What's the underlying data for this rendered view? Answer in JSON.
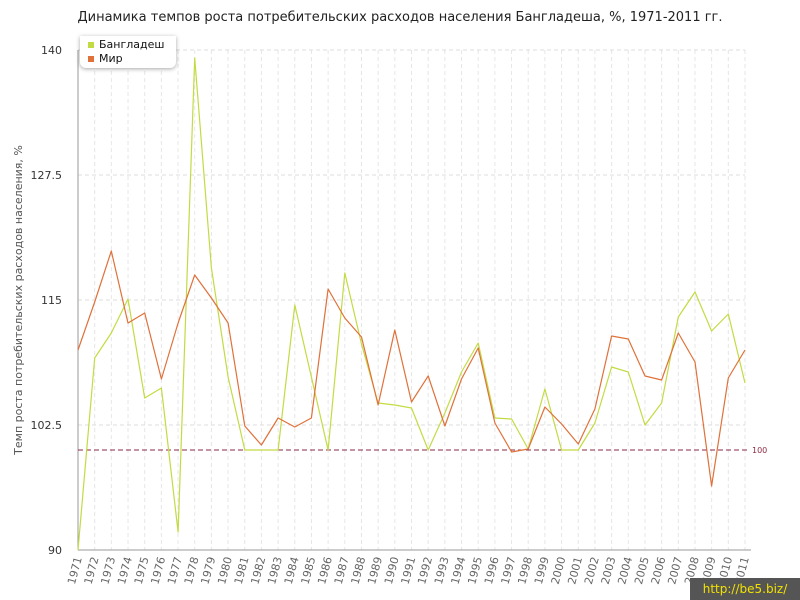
{
  "watermark": "http://be5.biz/",
  "chart_data": {
    "type": "line",
    "title": "Динамика темпов роста потребительских расходов населения Бангладеша, %, 1971-2011 гг.",
    "ylabel": "Темп роста потребительских расходов населения, %",
    "xlabel": "",
    "ylim": [
      90,
      140
    ],
    "yticks": [
      "90",
      "102.5",
      "115",
      "127.5",
      "140"
    ],
    "categories": [
      "1971",
      "1972",
      "1973",
      "1974",
      "1975",
      "1976",
      "1977",
      "1978",
      "1979",
      "1980",
      "1981",
      "1982",
      "1983",
      "1984",
      "1985",
      "1986",
      "1987",
      "1988",
      "1989",
      "1990",
      "1991",
      "1992",
      "1993",
      "1994",
      "1995",
      "1996",
      "1997",
      "1998",
      "1999",
      "2000",
      "2001",
      "2002",
      "2003",
      "2004",
      "2005",
      "2006",
      "2007",
      "2008",
      "2009",
      "2010",
      "2011"
    ],
    "series": [
      {
        "name": "Бангладеш",
        "color": "#c3db43",
        "values": [
          90,
          109.2,
          111.7,
          115.1,
          105.2,
          106.2,
          91.8,
          139.2,
          118.2,
          107.3,
          100,
          100,
          100,
          114.5,
          107.3,
          100,
          117.7,
          110.6,
          104.7,
          104.5,
          104.2,
          100,
          103.7,
          107.8,
          110.7,
          103.2,
          103.1,
          100.1,
          106.1,
          100,
          100,
          102.7,
          108.3,
          107.8,
          102.5,
          104.7,
          113.3,
          115.8,
          111.9,
          113.6,
          106.7
        ]
      },
      {
        "name": "Мир",
        "color": "#e0713a",
        "values": [
          110,
          114.8,
          119.9,
          112.7,
          113.7,
          107.1,
          112.7,
          117.5,
          115.2,
          112.7,
          102.4,
          100.5,
          103.2,
          102.3,
          103.2,
          116.1,
          113.2,
          111.3,
          104.5,
          112,
          104.8,
          107.4,
          102.4,
          107.1,
          110.2,
          102.7,
          99.8,
          100.1,
          104.3,
          102.6,
          100.6,
          104.1,
          111.4,
          111.1,
          107.4,
          107,
          111.7,
          108.8,
          96.4,
          107.2,
          110
        ]
      }
    ],
    "reference_line": {
      "value": 100,
      "label": "100",
      "color": "#8b2a44"
    },
    "grid": true,
    "legend_position": "top-left"
  }
}
